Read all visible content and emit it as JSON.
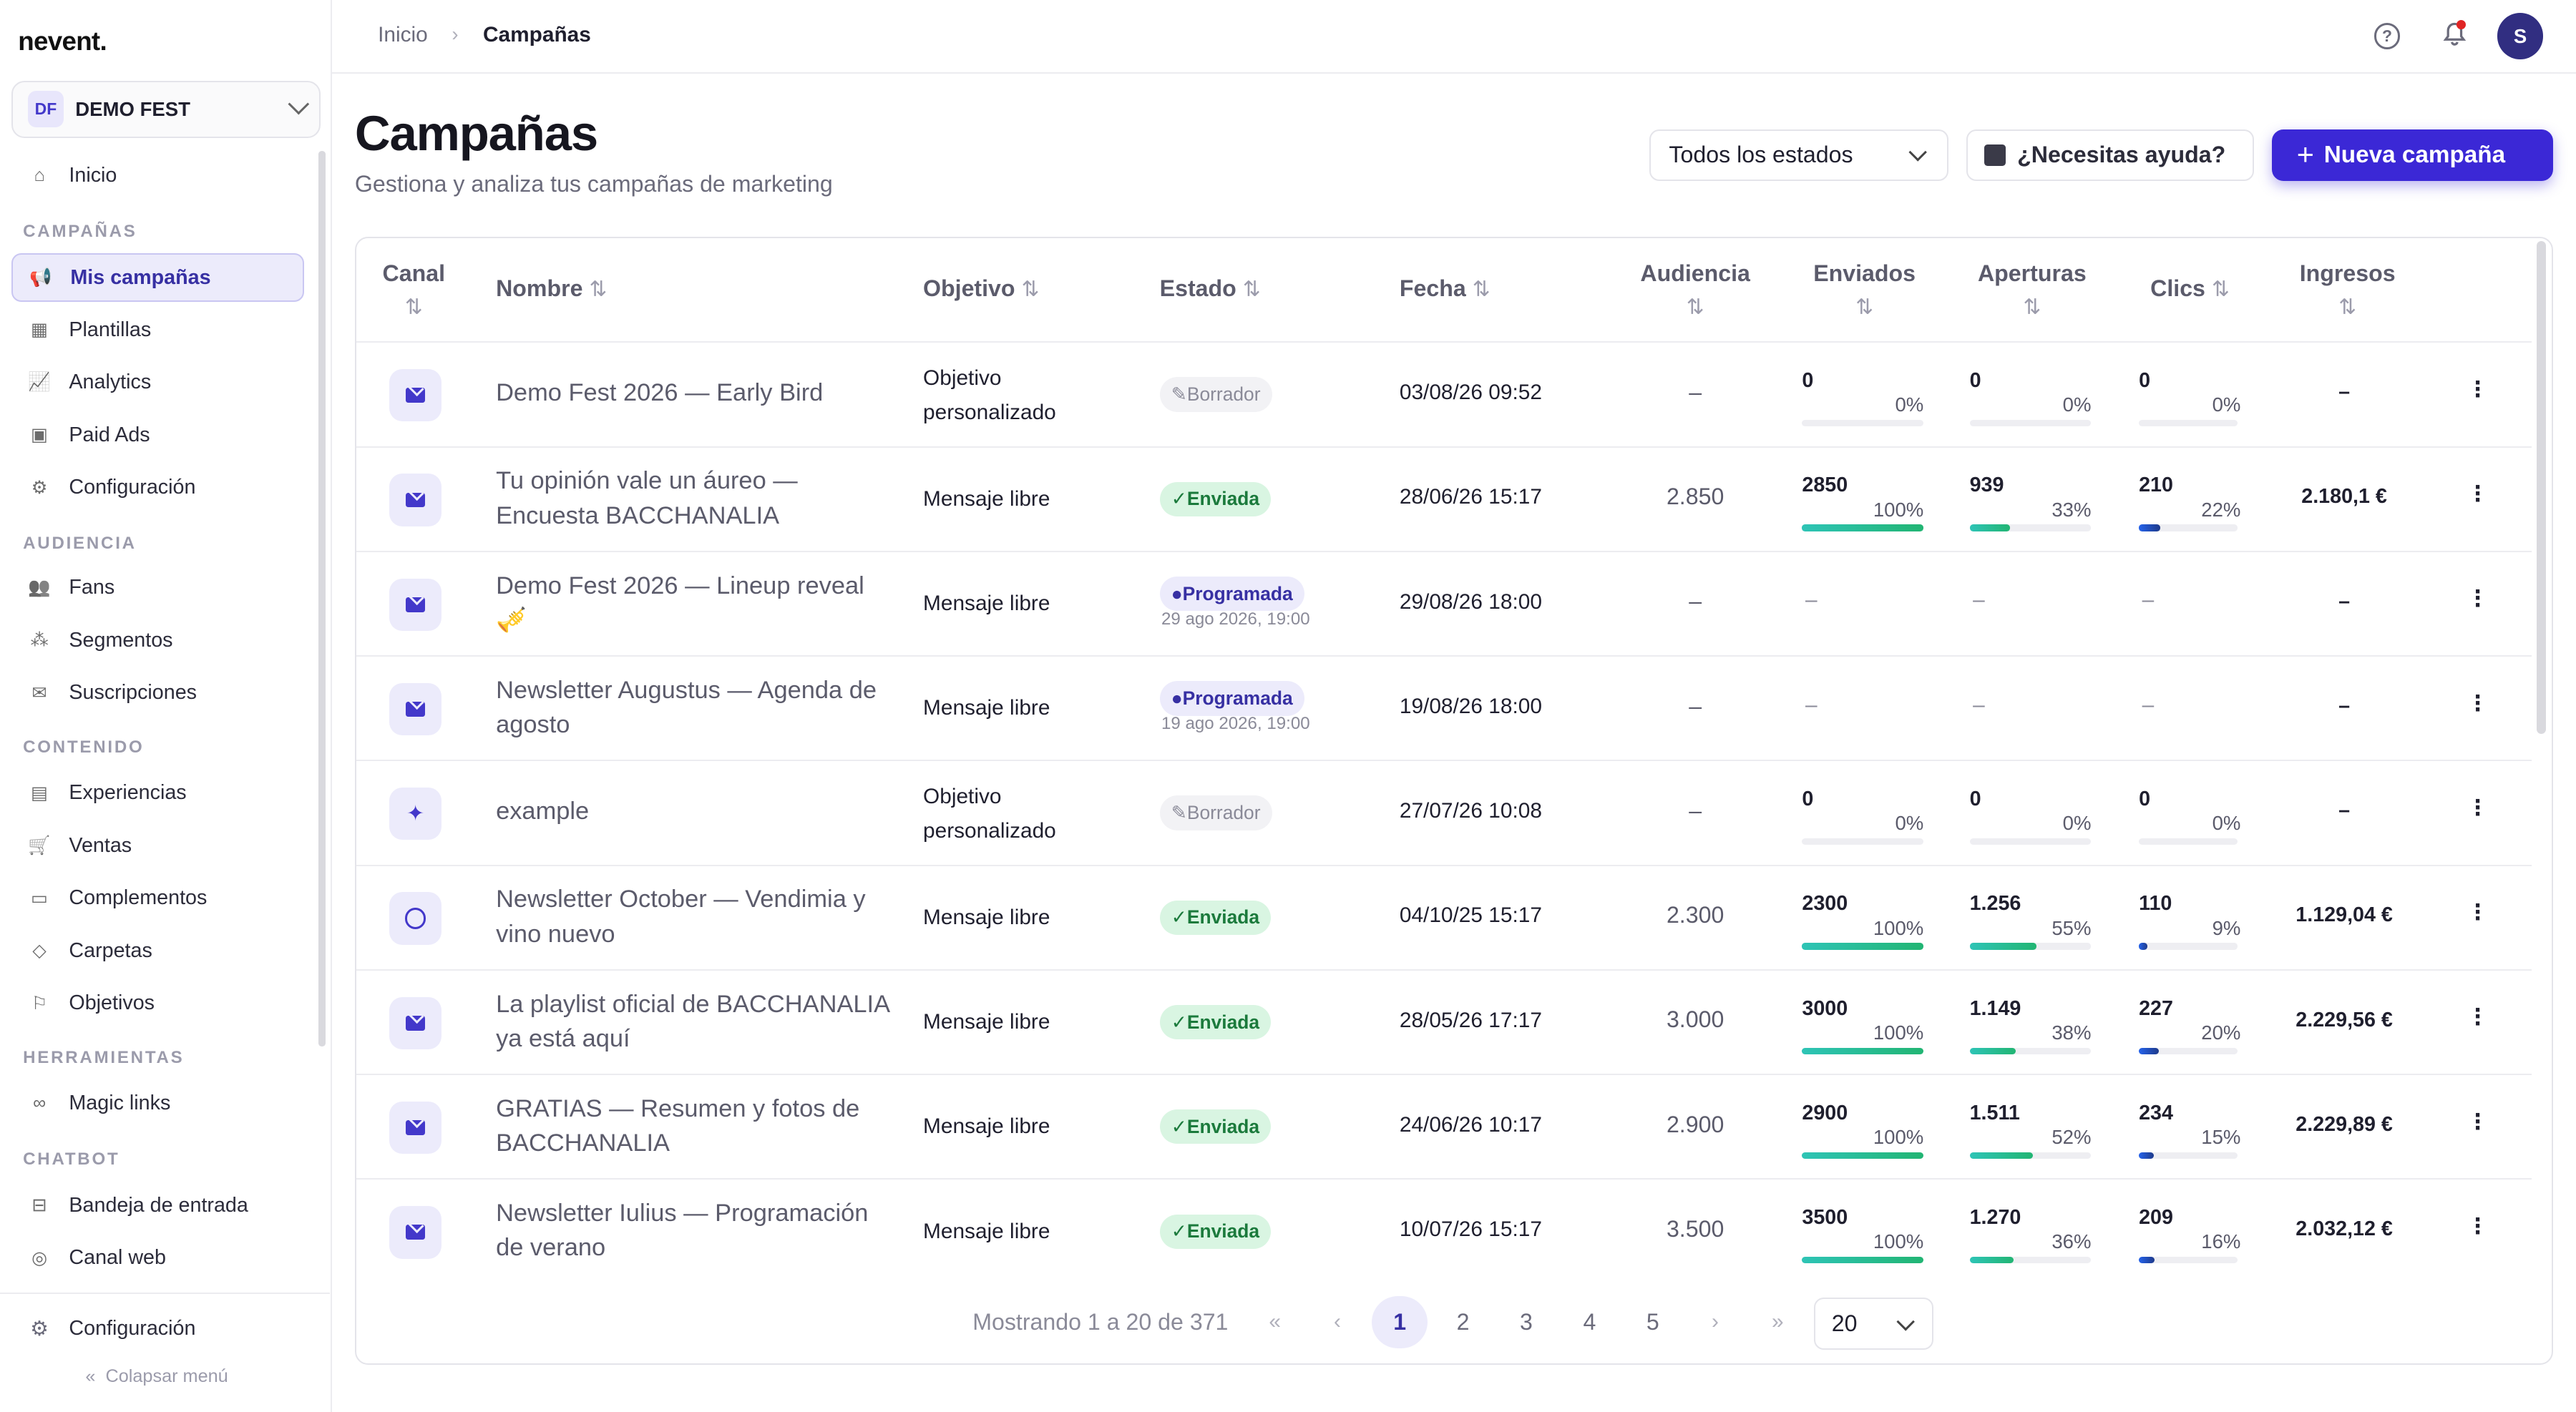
{
  "app": {
    "logo": "nevent."
  },
  "org": {
    "badge": "DF",
    "name": "DEMO FEST"
  },
  "sidebar": {
    "top": {
      "label": "Inicio",
      "icon": "home-icon"
    },
    "sections": [
      {
        "title": "CAMPAÑAS",
        "items": [
          {
            "label": "Mis campañas",
            "icon": "megaphone-icon",
            "active": true
          },
          {
            "label": "Plantillas",
            "icon": "grid-icon"
          },
          {
            "label": "Analytics",
            "icon": "chart-icon"
          },
          {
            "label": "Paid Ads",
            "icon": "image-icon"
          },
          {
            "label": "Configuración",
            "icon": "gear-icon"
          }
        ]
      },
      {
        "title": "AUDIENCIA",
        "items": [
          {
            "label": "Fans",
            "icon": "users-icon"
          },
          {
            "label": "Segmentos",
            "icon": "segments-icon"
          },
          {
            "label": "Suscripciones",
            "icon": "mail-icon"
          }
        ]
      },
      {
        "title": "CONTENIDO",
        "items": [
          {
            "label": "Experiencias",
            "icon": "calendar-icon"
          },
          {
            "label": "Ventas",
            "icon": "cart-icon"
          },
          {
            "label": "Complementos",
            "icon": "bag-icon"
          },
          {
            "label": "Carpetas",
            "icon": "tag-icon"
          },
          {
            "label": "Objetivos",
            "icon": "flag-icon"
          }
        ]
      },
      {
        "title": "HERRAMIENTAS",
        "items": [
          {
            "label": "Magic links",
            "icon": "link-icon"
          }
        ]
      },
      {
        "title": "CHATBOT",
        "items": [
          {
            "label": "Bandeja de entrada",
            "icon": "inbox-icon"
          },
          {
            "label": "Canal web",
            "icon": "globe-icon"
          }
        ]
      }
    ],
    "footer_settings": "Configuración",
    "collapse": "Colapsar menú"
  },
  "breadcrumb": {
    "home": "Inicio",
    "current": "Campañas"
  },
  "topbar": {
    "avatar": "S"
  },
  "header": {
    "title": "Campañas",
    "subtitle": "Gestiona y analiza tus campañas de marketing",
    "filter": "Todos los estados",
    "help": "¿Necesitas ayuda?",
    "new": "Nueva campaña"
  },
  "table": {
    "columns": {
      "canal": "Canal",
      "nombre": "Nombre",
      "objetivo": "Objetivo",
      "estado": "Estado",
      "fecha": "Fecha",
      "audiencia": "Audiencia",
      "enviados": "Enviados",
      "aperturas": "Aperturas",
      "clics": "Clics",
      "ingresos": "Ingresos"
    },
    "sort_glyph": "⇅",
    "rows": [
      {
        "channel": "email-icon",
        "name": "Demo Fest 2026 — Early Bird",
        "objective": "Objetivo personalizado",
        "status": "draft",
        "status_label": "Borrador",
        "date": "03/08/26 09:52",
        "audience": "–",
        "sent": {
          "n": "0",
          "p": "0%",
          "fill": 0
        },
        "opens": {
          "n": "0",
          "p": "0%",
          "fill": 0
        },
        "clicks": {
          "n": "0",
          "p": "0%",
          "fill": 0
        },
        "revenue": "–"
      },
      {
        "channel": "email-icon",
        "name": "Tu opinión vale un áureo — Encuesta BACCHANALIA",
        "objective": "Mensaje libre",
        "status": "sent",
        "status_label": "Enviada",
        "date": "28/06/26 15:17",
        "audience": "2.850",
        "sent": {
          "n": "2850",
          "p": "100%",
          "fill": 100
        },
        "opens": {
          "n": "939",
          "p": "33%",
          "fill": 33
        },
        "clicks": {
          "n": "210",
          "p": "22%",
          "fill": 22
        },
        "revenue": "2.180,1 €"
      },
      {
        "channel": "email-icon",
        "name": "Demo Fest 2026 — Lineup reveal 🎺",
        "objective": "Mensaje libre",
        "status": "sched",
        "status_label": "Programada",
        "sched_sub": "29 ago 2026, 19:00",
        "date": "29/08/26 18:00",
        "audience": "–",
        "dashes": "–",
        "revenue": "–"
      },
      {
        "channel": "email-icon",
        "name": "Newsletter Augustus — Agenda de agosto",
        "objective": "Mensaje libre",
        "status": "sched",
        "status_label": "Programada",
        "sched_sub": "19 ago 2026, 19:00",
        "date": "19/08/26 18:00",
        "audience": "–",
        "dashes": "–",
        "revenue": "–"
      },
      {
        "channel": "wand-icon",
        "name": "example",
        "objective": "Objetivo personalizado",
        "status": "draft",
        "status_label": "Borrador",
        "date": "27/07/26 10:08",
        "audience": "–",
        "sent": {
          "n": "0",
          "p": "0%",
          "fill": 0
        },
        "opens": {
          "n": "0",
          "p": "0%",
          "fill": 0
        },
        "clicks": {
          "n": "0",
          "p": "0%",
          "fill": 0
        },
        "revenue": "–"
      },
      {
        "channel": "whatsapp-icon",
        "name": "Newsletter October — Vendimia y vino nuevo",
        "objective": "Mensaje libre",
        "status": "sent",
        "status_label": "Enviada",
        "date": "04/10/25 15:17",
        "audience": "2.300",
        "sent": {
          "n": "2300",
          "p": "100%",
          "fill": 100
        },
        "opens": {
          "n": "1.256",
          "p": "55%",
          "fill": 55
        },
        "clicks": {
          "n": "110",
          "p": "9%",
          "fill": 9
        },
        "revenue": "1.129,04 €"
      },
      {
        "channel": "email-icon",
        "name": "La playlist oficial de BACCHANALIA ya está aquí",
        "objective": "Mensaje libre",
        "status": "sent",
        "status_label": "Enviada",
        "date": "28/05/26 17:17",
        "audience": "3.000",
        "sent": {
          "n": "3000",
          "p": "100%",
          "fill": 100
        },
        "opens": {
          "n": "1.149",
          "p": "38%",
          "fill": 38
        },
        "clicks": {
          "n": "227",
          "p": "20%",
          "fill": 20
        },
        "revenue": "2.229,56 €"
      },
      {
        "channel": "email-icon",
        "name": "GRATIAS — Resumen y fotos de BACCHANALIA",
        "objective": "Mensaje libre",
        "status": "sent",
        "status_label": "Enviada",
        "date": "24/06/26 10:17",
        "audience": "2.900",
        "sent": {
          "n": "2900",
          "p": "100%",
          "fill": 100
        },
        "opens": {
          "n": "1.511",
          "p": "52%",
          "fill": 52
        },
        "clicks": {
          "n": "234",
          "p": "15%",
          "fill": 15
        },
        "revenue": "2.229,89 €"
      },
      {
        "channel": "email-icon",
        "name": "Newsletter Iulius — Programación de verano",
        "objective": "Mensaje libre",
        "status": "sent",
        "status_label": "Enviada",
        "date": "10/07/26 15:17",
        "audience": "3.500",
        "sent": {
          "n": "3500",
          "p": "100%",
          "fill": 100
        },
        "opens": {
          "n": "1.270",
          "p": "36%",
          "fill": 36
        },
        "clicks": {
          "n": "209",
          "p": "16%",
          "fill": 16
        },
        "revenue": "2.032,12 €"
      }
    ]
  },
  "pagination": {
    "info": "Mostrando 1 a 20 de 371",
    "first": "«",
    "prev": "‹",
    "next": "›",
    "last": "»",
    "pages": [
      "1",
      "2",
      "3",
      "4",
      "5"
    ],
    "current": "1",
    "page_size": "20"
  }
}
